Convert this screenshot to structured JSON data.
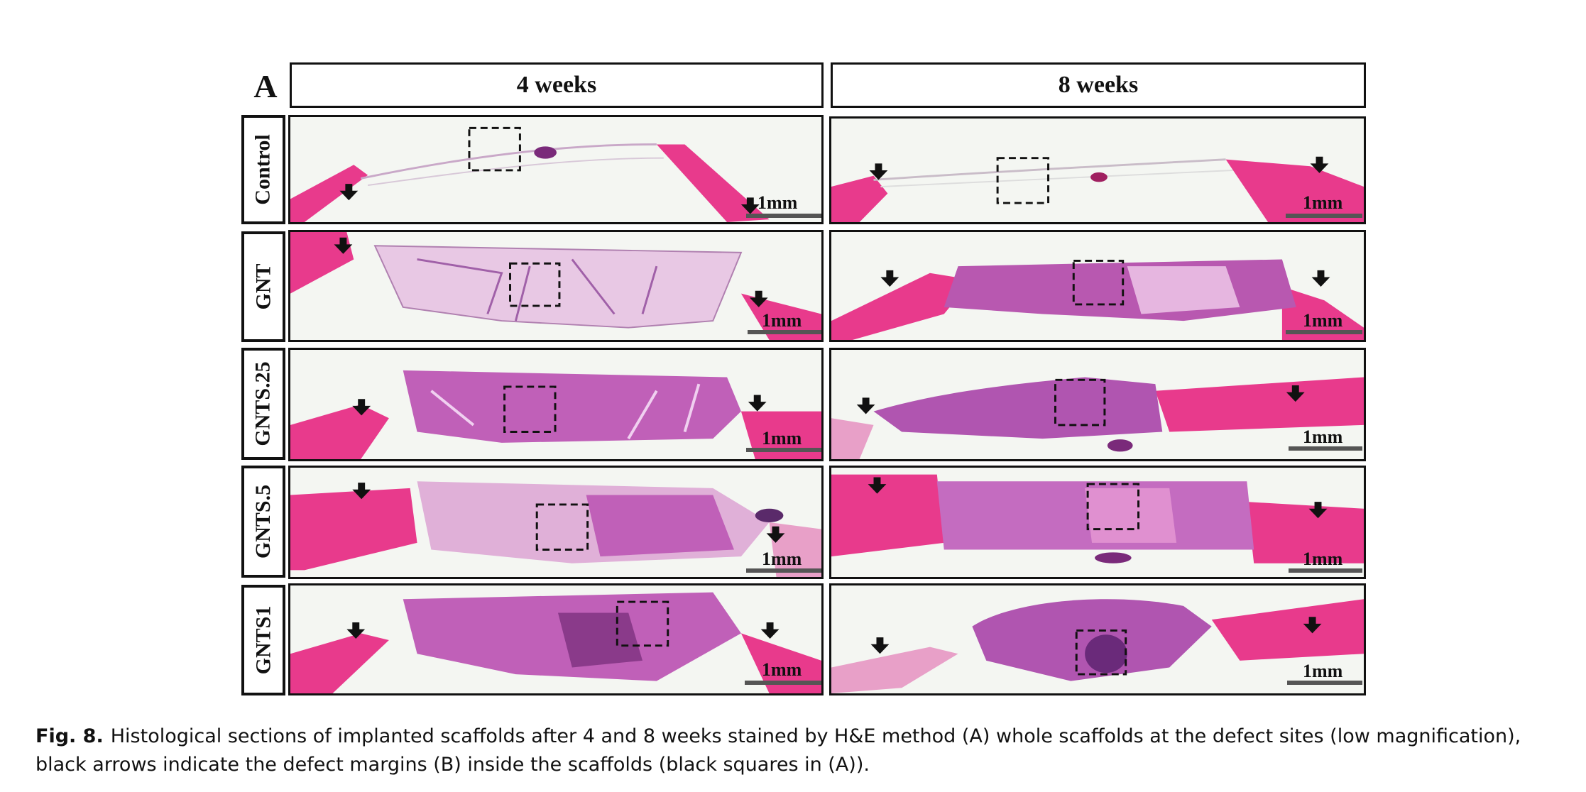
{
  "panel_label": "A",
  "columns": [
    "4 weeks",
    "8 weeks"
  ],
  "rows": [
    {
      "label": "Control",
      "scale": [
        "1mm",
        "1mm"
      ]
    },
    {
      "label": "GNT",
      "scale": [
        "1mm",
        "1mm"
      ]
    },
    {
      "label": "GNTS.25",
      "scale": [
        "1mm",
        "1mm"
      ]
    },
    {
      "label": "GNTS.5",
      "scale": [
        "1mm",
        "1mm"
      ]
    },
    {
      "label": "GNTS1",
      "scale": [
        "1mm",
        "1mm"
      ]
    }
  ],
  "caption": {
    "label": "Fig. 8.",
    "text": "Histological sections of implanted scaffolds after 4 and 8 weeks stained by H&E method (A) whole scaffolds at the defect sites (low magnification), black arrows indicate the defect margins (B) inside the scaffolds (black squares in (A))."
  },
  "colors": {
    "bone": "#e83a8c",
    "tissue": "#c060b8",
    "tissue_light": "#e8b8e0",
    "background": "#f4f6f2"
  }
}
